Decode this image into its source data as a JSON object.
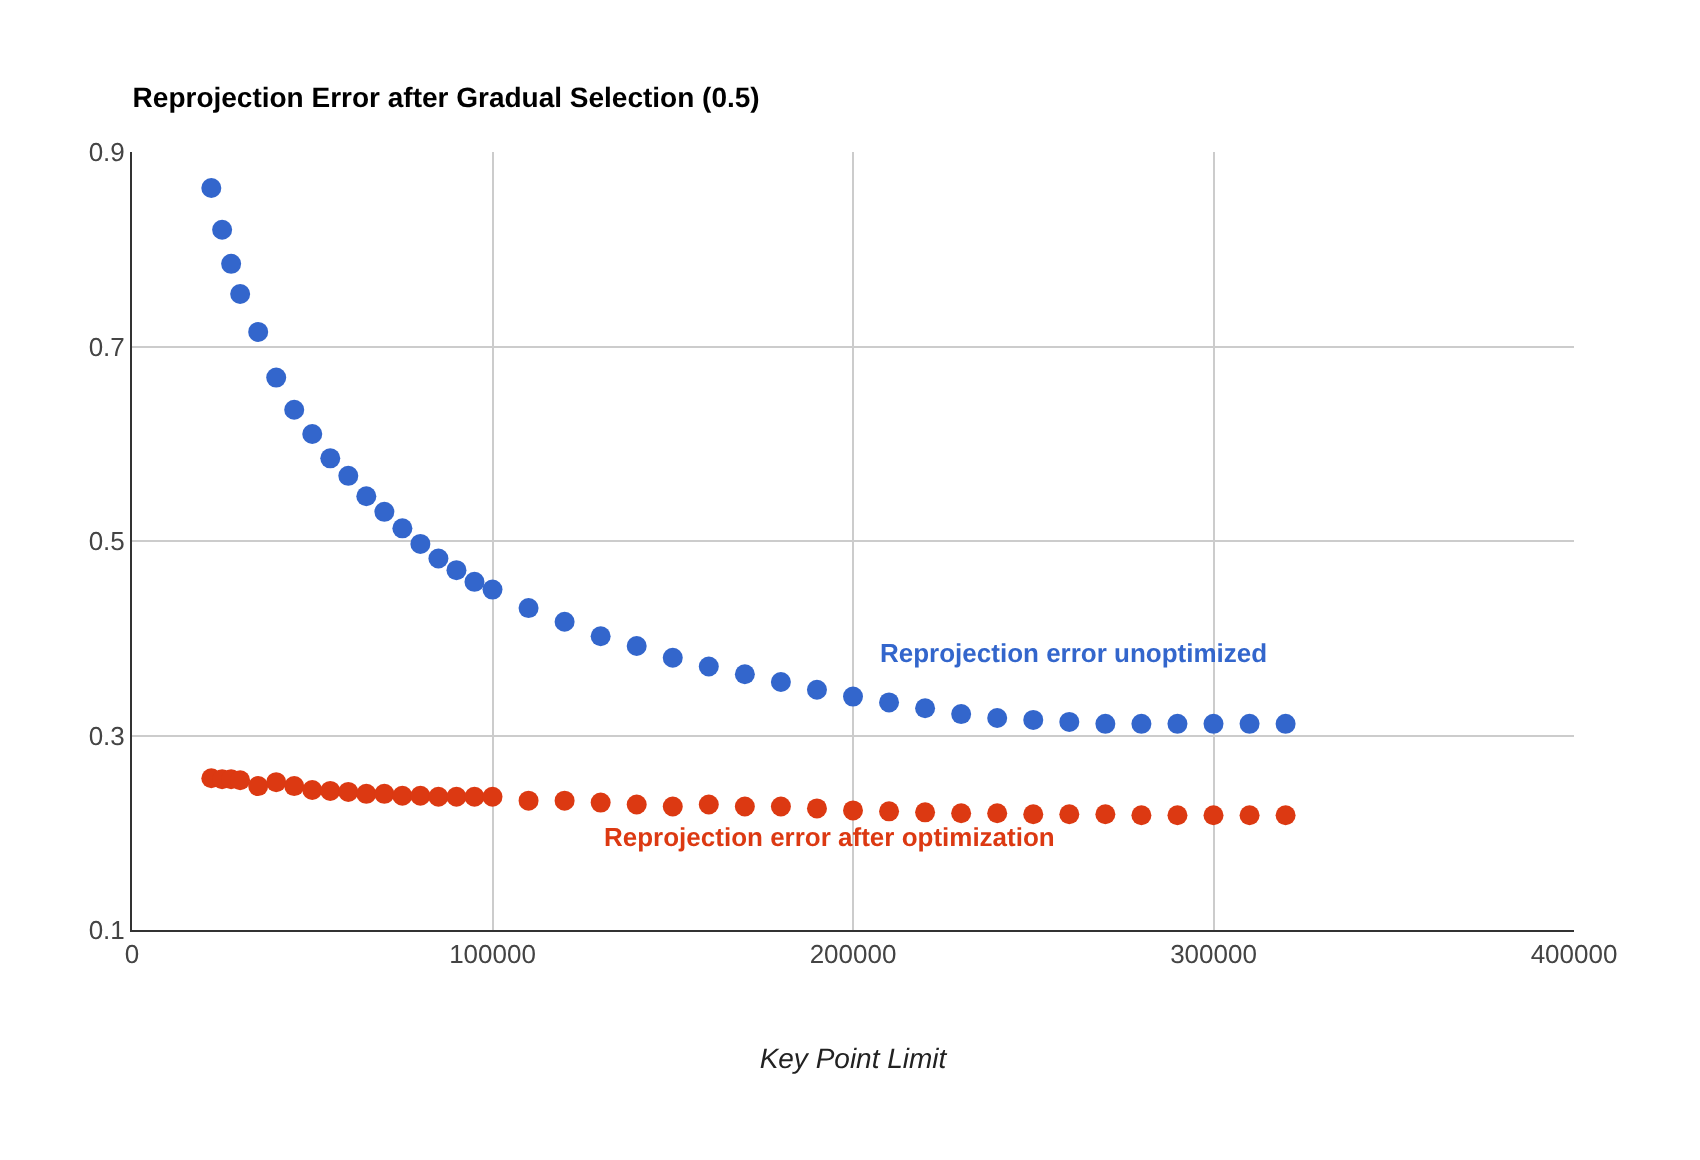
{
  "chart_data": {
    "type": "scatter",
    "title": "Reprojection Error after Gradual Selection (0.5)",
    "xlabel": "Key Point Limit",
    "x": [
      22000,
      25000,
      27500,
      30000,
      35000,
      40000,
      45000,
      50000,
      55000,
      60000,
      65000,
      70000,
      75000,
      80000,
      85000,
      90000,
      95000,
      100000,
      110000,
      120000,
      130000,
      140000,
      150000,
      160000,
      170000,
      180000,
      190000,
      200000,
      210000,
      220000,
      230000,
      240000,
      250000,
      260000,
      270000,
      280000,
      290000,
      300000,
      310000,
      320000
    ],
    "series": [
      {
        "name": "Reprojection error unoptimized",
        "color": "#3366cc",
        "values": [
          0.863,
          0.82,
          0.785,
          0.754,
          0.715,
          0.668,
          0.635,
          0.61,
          0.585,
          0.567,
          0.546,
          0.53,
          0.513,
          0.497,
          0.482,
          0.47,
          0.458,
          0.45,
          0.431,
          0.417,
          0.402,
          0.392,
          0.38,
          0.371,
          0.363,
          0.355,
          0.347,
          0.34,
          0.334,
          0.328,
          0.322,
          0.318,
          0.316,
          0.314,
          0.312,
          0.312,
          0.312,
          0.312,
          0.312,
          0.312
        ]
      },
      {
        "name": "Reprojection error after optimization",
        "color": "#dc3912",
        "values": [
          0.256,
          0.255,
          0.255,
          0.254,
          0.248,
          0.252,
          0.248,
          0.244,
          0.243,
          0.242,
          0.24,
          0.24,
          0.238,
          0.238,
          0.237,
          0.237,
          0.237,
          0.237,
          0.233,
          0.233,
          0.231,
          0.229,
          0.227,
          0.229,
          0.227,
          0.227,
          0.225,
          0.223,
          0.222,
          0.221,
          0.22,
          0.22,
          0.219,
          0.219,
          0.219,
          0.218,
          0.218,
          0.218,
          0.218,
          0.218
        ]
      }
    ],
    "xlim": [
      0,
      400000
    ],
    "xticks": [
      0,
      100000,
      200000,
      300000,
      400000
    ],
    "ylim": [
      0.1,
      0.9
    ],
    "yticks": [
      0.1,
      0.3,
      0.5,
      0.7,
      0.9
    ],
    "grid": true,
    "legend": false,
    "marker": "circle"
  }
}
